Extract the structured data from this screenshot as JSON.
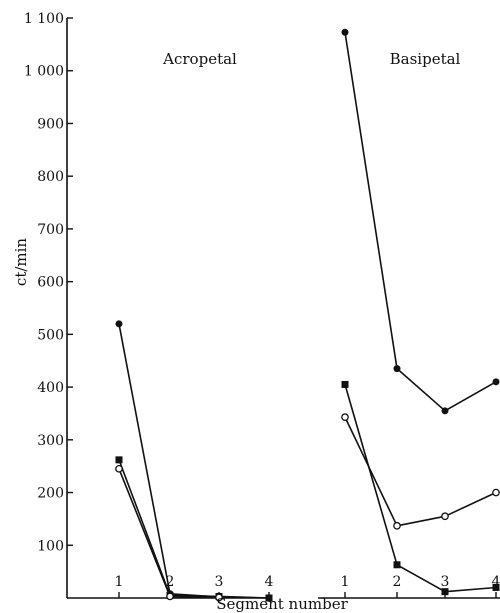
{
  "chart_data": {
    "type": "line",
    "ylabel": "ct/min",
    "xlabel": "Segment number",
    "ylim": [
      0,
      1100
    ],
    "yticks": [
      "100",
      "200",
      "300",
      "400",
      "500",
      "600",
      "700",
      "800",
      "900",
      "1 000",
      "1 100"
    ],
    "grid": false,
    "legend": "none",
    "panels": [
      {
        "title": "Acropetal",
        "categories": [
          "1",
          "2",
          "3",
          "4"
        ],
        "series": [
          {
            "marker": "filled-circle",
            "values": [
              520,
              8,
              2,
              null
            ]
          },
          {
            "marker": "filled-square",
            "values": [
              262,
              5,
              3,
              0
            ]
          },
          {
            "marker": "open-circle",
            "values": [
              245,
              3,
              1,
              null
            ]
          }
        ]
      },
      {
        "title": "Basipetal",
        "categories": [
          "1",
          "2",
          "3",
          "4"
        ],
        "series": [
          {
            "marker": "filled-circle",
            "values": [
              1073,
              435,
              355,
              410
            ]
          },
          {
            "marker": "filled-square",
            "values": [
              405,
              63,
              12,
              20
            ]
          },
          {
            "marker": "open-circle",
            "values": [
              343,
              137,
              155,
              200
            ]
          }
        ]
      }
    ]
  }
}
